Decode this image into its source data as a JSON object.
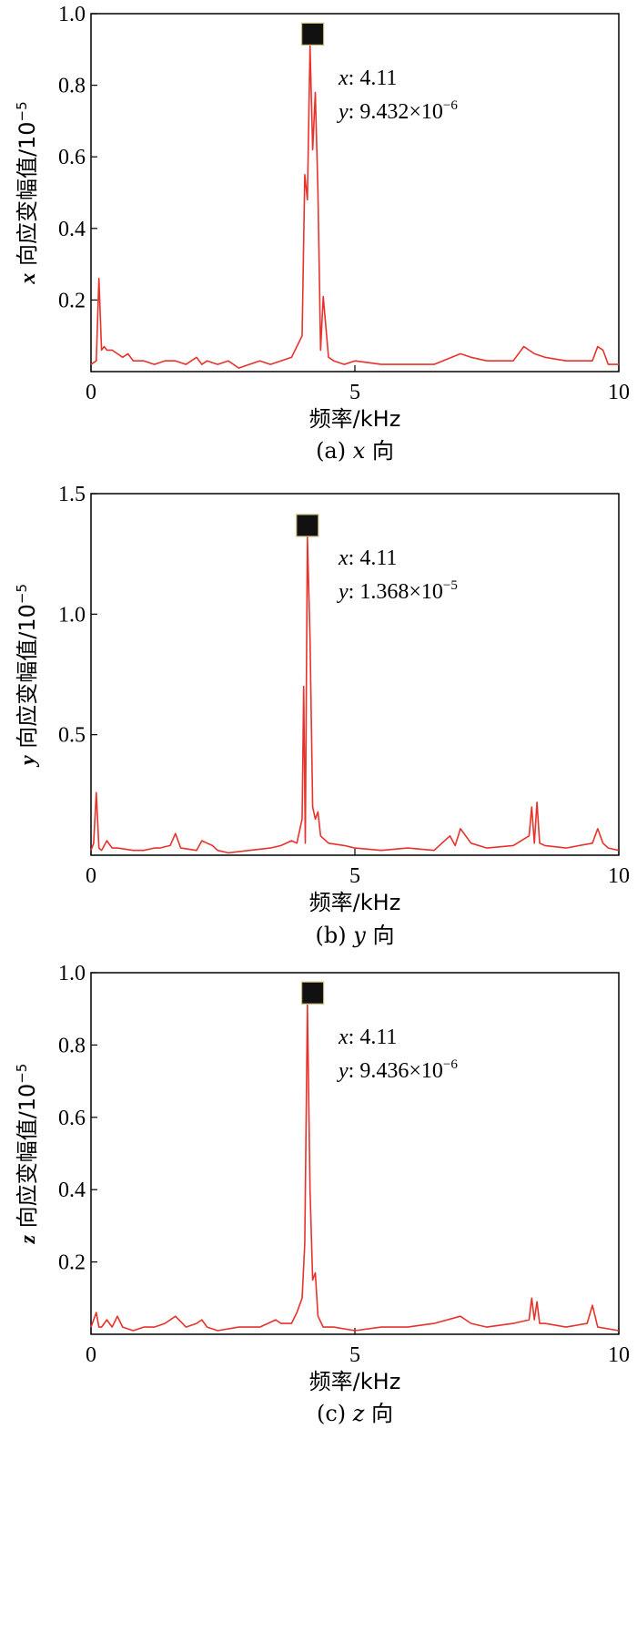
{
  "chart_data": [
    {
      "type": "line",
      "panel": "a",
      "caption_prefix": "(a) ",
      "caption_var": "x",
      "caption_suffix": " 向",
      "ylabel_var": "x",
      "ylabel_text": " 向应变幅值/10",
      "ylabel_exp": "−5",
      "xlabel": "频率/kHz",
      "xlim": [
        0,
        10
      ],
      "ylim": [
        0,
        1.0
      ],
      "xticks": [
        0,
        5,
        10
      ],
      "yticks": [
        0.2,
        0.4,
        0.6,
        0.8,
        1.0
      ],
      "ytick_labels": [
        "0.2",
        "0.4",
        "0.6",
        "0.8",
        "1.0"
      ],
      "grid": false,
      "color": "#e8322c",
      "annotation": {
        "x_label": "x",
        "x_value": ": 4.11",
        "y_label": "y",
        "y_mantissa": ": 9.432×10",
        "y_exp": "−6",
        "marker_x": 4.2,
        "marker_y": 0.943
      },
      "x": [
        0,
        0.1,
        0.15,
        0.2,
        0.25,
        0.3,
        0.4,
        0.5,
        0.6,
        0.7,
        0.8,
        1.0,
        1.2,
        1.4,
        1.6,
        1.8,
        2.0,
        2.1,
        2.2,
        2.4,
        2.6,
        2.8,
        3.0,
        3.2,
        3.4,
        3.6,
        3.8,
        3.9,
        4.0,
        4.05,
        4.1,
        4.15,
        4.2,
        4.25,
        4.3,
        4.35,
        4.4,
        4.5,
        4.6,
        4.8,
        5.0,
        5.5,
        6.0,
        6.5,
        7.0,
        7.2,
        7.5,
        8.0,
        8.2,
        8.4,
        8.6,
        9.0,
        9.5,
        9.6,
        9.7,
        9.8,
        10.0
      ],
      "y": [
        0.02,
        0.03,
        0.26,
        0.06,
        0.07,
        0.06,
        0.06,
        0.05,
        0.04,
        0.05,
        0.03,
        0.03,
        0.02,
        0.03,
        0.03,
        0.02,
        0.04,
        0.02,
        0.03,
        0.02,
        0.03,
        0.01,
        0.02,
        0.03,
        0.02,
        0.03,
        0.04,
        0.07,
        0.1,
        0.55,
        0.48,
        0.91,
        0.62,
        0.78,
        0.5,
        0.06,
        0.21,
        0.04,
        0.03,
        0.02,
        0.03,
        0.02,
        0.02,
        0.02,
        0.05,
        0.04,
        0.03,
        0.03,
        0.07,
        0.05,
        0.04,
        0.03,
        0.03,
        0.07,
        0.06,
        0.02,
        0.02
      ]
    },
    {
      "type": "line",
      "panel": "b",
      "caption_prefix": "(b) ",
      "caption_var": "y",
      "caption_suffix": " 向",
      "ylabel_var": "y",
      "ylabel_text": " 向应变幅值/10",
      "ylabel_exp": "−5",
      "xlabel": "频率/kHz",
      "xlim": [
        0,
        10
      ],
      "ylim": [
        0,
        1.5
      ],
      "xticks": [
        0,
        5,
        10
      ],
      "yticks": [
        0.5,
        1.0,
        1.5
      ],
      "ytick_labels": [
        "0.5",
        "1.0",
        "1.5"
      ],
      "grid": false,
      "color": "#e8322c",
      "annotation": {
        "x_label": "x",
        "x_value": ": 4.11",
        "y_label": "y",
        "y_mantissa": ": 1.368×10",
        "y_exp": "−5",
        "marker_x": 4.1,
        "marker_y": 1.368
      },
      "x": [
        0,
        0.05,
        0.1,
        0.15,
        0.2,
        0.3,
        0.4,
        0.5,
        0.8,
        1.0,
        1.2,
        1.3,
        1.5,
        1.6,
        1.7,
        2.0,
        2.1,
        2.2,
        2.3,
        2.4,
        2.6,
        3.0,
        3.4,
        3.6,
        3.8,
        3.9,
        4.0,
        4.03,
        4.06,
        4.1,
        4.15,
        4.2,
        4.25,
        4.3,
        4.35,
        4.5,
        4.8,
        5.0,
        5.5,
        6.0,
        6.5,
        6.8,
        6.9,
        7.0,
        7.2,
        7.5,
        8.0,
        8.3,
        8.35,
        8.4,
        8.45,
        8.5,
        8.6,
        9.0,
        9.5,
        9.6,
        9.7,
        9.8,
        10.0
      ],
      "y": [
        0.02,
        0.05,
        0.26,
        0.03,
        0.02,
        0.06,
        0.03,
        0.03,
        0.02,
        0.02,
        0.03,
        0.03,
        0.04,
        0.09,
        0.03,
        0.02,
        0.06,
        0.05,
        0.04,
        0.02,
        0.01,
        0.02,
        0.03,
        0.04,
        0.06,
        0.05,
        0.15,
        0.7,
        0.05,
        1.32,
        0.9,
        0.2,
        0.15,
        0.18,
        0.08,
        0.05,
        0.04,
        0.03,
        0.02,
        0.03,
        0.02,
        0.08,
        0.04,
        0.11,
        0.05,
        0.03,
        0.04,
        0.08,
        0.2,
        0.05,
        0.22,
        0.05,
        0.04,
        0.03,
        0.05,
        0.11,
        0.05,
        0.03,
        0.02
      ]
    },
    {
      "type": "line",
      "panel": "c",
      "caption_prefix": "(c) ",
      "caption_var": "z",
      "caption_suffix": " 向",
      "ylabel_var": "z",
      "ylabel_text": " 向应变幅值/10",
      "ylabel_exp": "−5",
      "xlabel": "频率/kHz",
      "xlim": [
        0,
        10
      ],
      "ylim": [
        0,
        1.0
      ],
      "xticks": [
        0,
        5,
        10
      ],
      "yticks": [
        0.2,
        0.4,
        0.6,
        0.8,
        1.0
      ],
      "ytick_labels": [
        "0.2",
        "0.4",
        "0.6",
        "0.8",
        "1.0"
      ],
      "grid": false,
      "color": "#e8322c",
      "annotation": {
        "x_label": "x",
        "x_value": ": 4.11",
        "y_label": "y",
        "y_mantissa": ": 9.436×10",
        "y_exp": "−6",
        "marker_x": 4.2,
        "marker_y": 0.944
      },
      "x": [
        0,
        0.1,
        0.15,
        0.2,
        0.3,
        0.4,
        0.5,
        0.6,
        0.8,
        1.0,
        1.2,
        1.4,
        1.6,
        1.8,
        2.0,
        2.1,
        2.2,
        2.4,
        2.8,
        3.2,
        3.5,
        3.6,
        3.8,
        3.9,
        4.0,
        4.05,
        4.1,
        4.15,
        4.2,
        4.25,
        4.3,
        4.4,
        4.6,
        5.0,
        5.5,
        6.0,
        6.5,
        7.0,
        7.2,
        7.5,
        8.0,
        8.3,
        8.35,
        8.4,
        8.45,
        8.5,
        8.6,
        9.0,
        9.4,
        9.5,
        9.6,
        10.0
      ],
      "y": [
        0.02,
        0.06,
        0.02,
        0.02,
        0.04,
        0.02,
        0.05,
        0.02,
        0.01,
        0.02,
        0.02,
        0.03,
        0.05,
        0.02,
        0.03,
        0.04,
        0.02,
        0.01,
        0.02,
        0.02,
        0.04,
        0.03,
        0.03,
        0.06,
        0.1,
        0.25,
        0.91,
        0.4,
        0.15,
        0.17,
        0.05,
        0.02,
        0.02,
        0.01,
        0.02,
        0.02,
        0.03,
        0.05,
        0.03,
        0.02,
        0.03,
        0.04,
        0.1,
        0.04,
        0.09,
        0.03,
        0.03,
        0.02,
        0.03,
        0.08,
        0.02,
        0.01
      ]
    }
  ]
}
